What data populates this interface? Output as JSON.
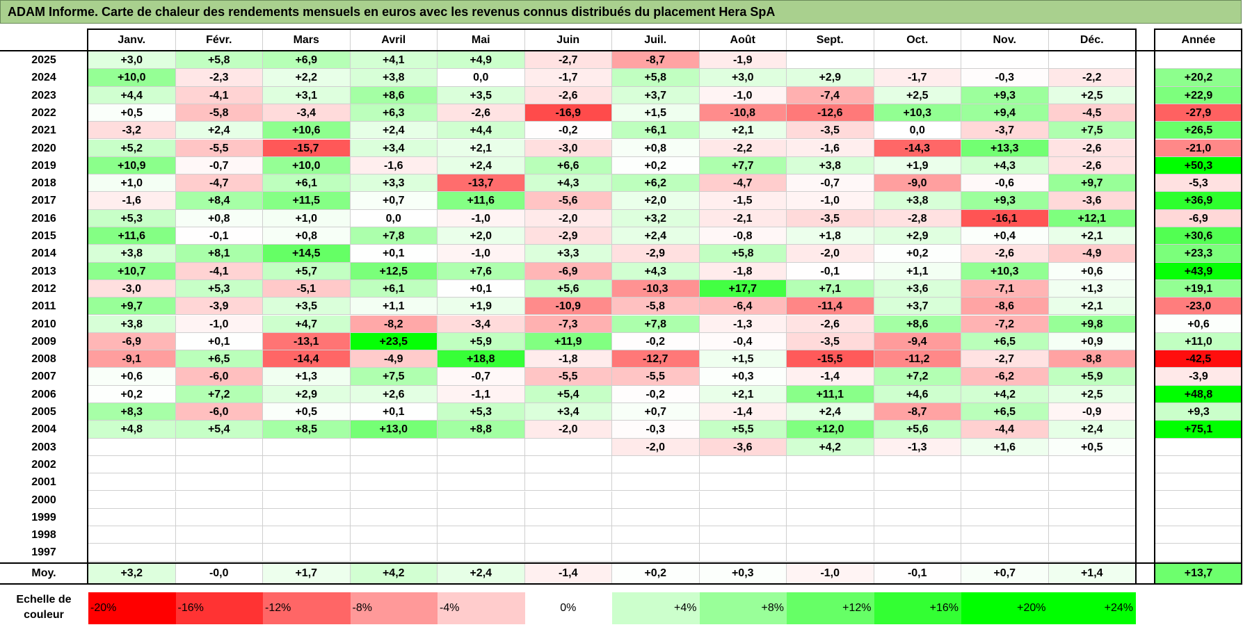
{
  "title": "ADAM Informe. Carte de chaleur des rendements mensuels en euros avec les revenus connus distribués du placement Hera SpA",
  "chart_data": {
    "type": "heatmap",
    "title": "ADAM Informe. Carte de chaleur des rendements mensuels en euros avec les revenus connus distribués du placement Hera SpA",
    "months": [
      "Janv.",
      "Févr.",
      "Mars",
      "Avril",
      "Mai",
      "Juin",
      "Juil.",
      "Août",
      "Sept.",
      "Oct.",
      "Nov.",
      "Déc."
    ],
    "year_header": "Année",
    "rows": [
      {
        "year": "2025",
        "values": [
          3.0,
          5.8,
          6.9,
          4.1,
          4.9,
          -2.7,
          -8.7,
          -1.9,
          null,
          null,
          null,
          null
        ],
        "annual": null
      },
      {
        "year": "2024",
        "values": [
          10.0,
          -2.3,
          2.2,
          3.8,
          0.0,
          -1.7,
          5.8,
          3.0,
          2.9,
          -1.7,
          -0.3,
          -2.2
        ],
        "annual": 20.2
      },
      {
        "year": "2023",
        "values": [
          4.4,
          -4.1,
          3.1,
          8.6,
          3.5,
          -2.6,
          3.7,
          -1.0,
          -7.4,
          2.5,
          9.3,
          2.5
        ],
        "annual": 22.9
      },
      {
        "year": "2022",
        "values": [
          0.5,
          -5.8,
          -3.4,
          6.3,
          -2.6,
          -16.9,
          1.5,
          -10.8,
          -12.6,
          10.3,
          9.4,
          -4.5
        ],
        "annual": -27.9
      },
      {
        "year": "2021",
        "values": [
          -3.2,
          2.4,
          10.6,
          2.4,
          4.4,
          -0.2,
          6.1,
          2.1,
          -3.5,
          0.0,
          -3.7,
          7.5
        ],
        "annual": 26.5
      },
      {
        "year": "2020",
        "values": [
          5.2,
          -5.5,
          -15.7,
          3.4,
          2.1,
          -3.0,
          0.8,
          -2.2,
          -1.6,
          -14.3,
          13.3,
          -2.6
        ],
        "annual": -21.0
      },
      {
        "year": "2019",
        "values": [
          10.9,
          -0.7,
          10.0,
          -1.6,
          2.4,
          6.6,
          0.2,
          7.7,
          3.8,
          1.9,
          4.3,
          -2.6
        ],
        "annual": 50.3
      },
      {
        "year": "2018",
        "values": [
          1.0,
          -4.7,
          6.1,
          3.3,
          -13.7,
          4.3,
          6.2,
          -4.7,
          -0.7,
          -9.0,
          -0.6,
          9.7
        ],
        "annual": -5.3
      },
      {
        "year": "2017",
        "values": [
          -1.6,
          8.4,
          11.5,
          0.7,
          11.6,
          -5.6,
          2.0,
          -1.5,
          -1.0,
          3.8,
          9.3,
          -3.6
        ],
        "annual": 36.9
      },
      {
        "year": "2016",
        "values": [
          5.3,
          0.8,
          1.0,
          0.0,
          -1.0,
          -2.0,
          3.2,
          -2.1,
          -3.5,
          -2.8,
          -16.1,
          12.1
        ],
        "annual": -6.9
      },
      {
        "year": "2015",
        "values": [
          11.6,
          -0.1,
          0.8,
          7.8,
          2.0,
          -2.9,
          2.4,
          -0.8,
          1.8,
          2.9,
          0.4,
          2.1
        ],
        "annual": 30.6
      },
      {
        "year": "2014",
        "values": [
          3.8,
          8.1,
          14.5,
          0.1,
          -1.0,
          3.3,
          -2.9,
          5.8,
          -2.0,
          0.2,
          -2.6,
          -4.9
        ],
        "annual": 23.3
      },
      {
        "year": "2013",
        "values": [
          10.7,
          -4.1,
          5.7,
          12.5,
          7.6,
          -6.9,
          4.3,
          -1.8,
          -0.1,
          1.1,
          10.3,
          0.6
        ],
        "annual": 43.9
      },
      {
        "year": "2012",
        "values": [
          -3.0,
          5.3,
          -5.1,
          6.1,
          0.1,
          5.6,
          -10.3,
          17.7,
          7.1,
          3.6,
          -7.1,
          1.3
        ],
        "annual": 19.1
      },
      {
        "year": "2011",
        "values": [
          9.7,
          -3.9,
          3.5,
          1.1,
          1.9,
          -10.9,
          -5.8,
          -6.4,
          -11.4,
          3.7,
          -8.6,
          2.1
        ],
        "annual": -23.0
      },
      {
        "year": "2010",
        "values": [
          3.8,
          -1.0,
          4.7,
          -8.2,
          -3.4,
          -7.3,
          7.8,
          -1.3,
          -2.6,
          8.6,
          -7.2,
          9.8
        ],
        "annual": 0.6
      },
      {
        "year": "2009",
        "values": [
          -6.9,
          0.1,
          -13.1,
          23.5,
          5.9,
          11.9,
          -0.2,
          -0.4,
          -3.5,
          -9.4,
          6.5,
          0.9
        ],
        "annual": 11.0
      },
      {
        "year": "2008",
        "values": [
          -9.1,
          6.5,
          -14.4,
          -4.9,
          18.8,
          -1.8,
          -12.7,
          1.5,
          -15.5,
          -11.2,
          -2.7,
          -8.8
        ],
        "annual": -42.5
      },
      {
        "year": "2007",
        "values": [
          0.6,
          -6.0,
          1.3,
          7.5,
          -0.7,
          -5.5,
          -5.5,
          0.3,
          -1.4,
          7.2,
          -6.2,
          5.9
        ],
        "annual": -3.9
      },
      {
        "year": "2006",
        "values": [
          0.2,
          7.2,
          2.9,
          2.6,
          -1.1,
          5.4,
          -0.2,
          2.1,
          11.1,
          4.6,
          4.2,
          2.5
        ],
        "annual": 48.8
      },
      {
        "year": "2005",
        "values": [
          8.3,
          -6.0,
          0.5,
          0.1,
          5.3,
          3.4,
          0.7,
          -1.4,
          2.4,
          -8.7,
          6.5,
          -0.9
        ],
        "annual": 9.3
      },
      {
        "year": "2004",
        "values": [
          4.8,
          5.4,
          8.5,
          13.0,
          8.8,
          -2.0,
          -0.3,
          5.5,
          12.0,
          5.6,
          -4.4,
          2.4
        ],
        "annual": 75.1
      },
      {
        "year": "2003",
        "values": [
          null,
          null,
          null,
          null,
          null,
          null,
          -2.0,
          -3.6,
          4.2,
          -1.3,
          1.6,
          0.5
        ],
        "annual": null
      },
      {
        "year": "2002",
        "values": [
          null,
          null,
          null,
          null,
          null,
          null,
          null,
          null,
          null,
          null,
          null,
          null
        ],
        "annual": null
      },
      {
        "year": "2001",
        "values": [
          null,
          null,
          null,
          null,
          null,
          null,
          null,
          null,
          null,
          null,
          null,
          null
        ],
        "annual": null
      },
      {
        "year": "2000",
        "values": [
          null,
          null,
          null,
          null,
          null,
          null,
          null,
          null,
          null,
          null,
          null,
          null
        ],
        "annual": null
      },
      {
        "year": "1999",
        "values": [
          null,
          null,
          null,
          null,
          null,
          null,
          null,
          null,
          null,
          null,
          null,
          null
        ],
        "annual": null
      },
      {
        "year": "1998",
        "values": [
          null,
          null,
          null,
          null,
          null,
          null,
          null,
          null,
          null,
          null,
          null,
          null
        ],
        "annual": null
      },
      {
        "year": "1997",
        "values": [
          null,
          null,
          null,
          null,
          null,
          null,
          null,
          null,
          null,
          null,
          null,
          null
        ],
        "annual": null
      }
    ],
    "average": {
      "label": "Moy.",
      "values": [
        "+3,2",
        "-0,0",
        "+1,7",
        "+4,2",
        "+2,4",
        "-1,4",
        "+0,2",
        "+0,3",
        "-1,0",
        "-0,1",
        "+0,7",
        "+1,4"
      ],
      "annual": "+13,7"
    },
    "scale": {
      "label": "Echelle de couleur",
      "stops": [
        {
          "text": "-20%",
          "value": -20
        },
        {
          "text": "-16%",
          "value": -16
        },
        {
          "text": "-12%",
          "value": -12
        },
        {
          "text": "-8%",
          "value": -8
        },
        {
          "text": "-4%",
          "value": -4
        },
        {
          "text": "0%",
          "value": 0
        },
        {
          "text": "+4%",
          "value": 4
        },
        {
          "text": "+8%",
          "value": 8
        },
        {
          "text": "+12%",
          "value": 12
        },
        {
          "text": "+16%",
          "value": 16
        },
        {
          "text": "+20%",
          "value": 20
        },
        {
          "text": "+24%",
          "value": 24
        }
      ]
    },
    "colors": {
      "negative": "#ff0000",
      "neutral": "#ffffff",
      "positive": "#00ff00",
      "title_bar": "#a9d08e"
    }
  }
}
